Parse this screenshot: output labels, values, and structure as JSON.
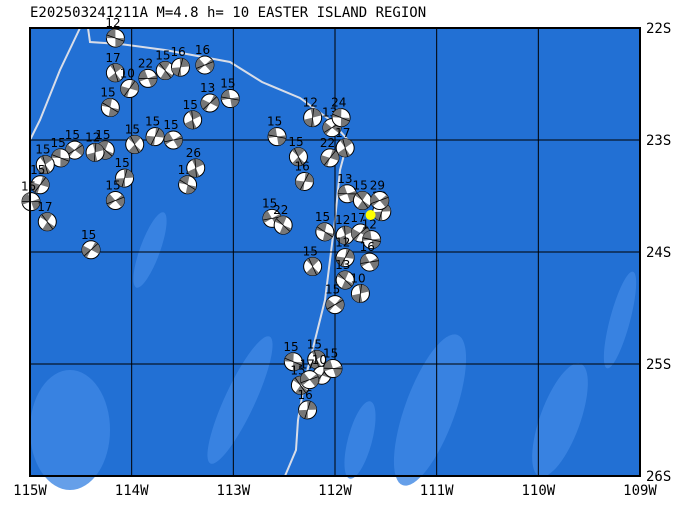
{
  "map": {
    "title": "E202503241211A M=4.8 h= 10 EASTER ISLAND REGION",
    "lon_range": [
      -115,
      -109
    ],
    "lat_range": [
      -22,
      -26
    ],
    "lon_ticks": [
      {
        "value": -115,
        "label": "115W"
      },
      {
        "value": -114,
        "label": "114W"
      },
      {
        "value": -113,
        "label": "113W"
      },
      {
        "value": -112,
        "label": "112W"
      },
      {
        "value": -111,
        "label": "111W"
      },
      {
        "value": -110,
        "label": "110W"
      },
      {
        "value": -109,
        "label": "109W"
      }
    ],
    "lat_ticks": [
      {
        "value": -22,
        "label": "22S"
      },
      {
        "value": -23,
        "label": "23S"
      },
      {
        "value": -24,
        "label": "24S"
      },
      {
        "value": -25,
        "label": "25S"
      },
      {
        "value": -26,
        "label": "26S"
      }
    ],
    "epicenter": {
      "lon": -111.65,
      "lat": -23.67
    },
    "events": [
      {
        "lon": -114.16,
        "lat": -22.09,
        "depth": 12
      },
      {
        "lon": -114.16,
        "lat": -22.4,
        "depth": 17
      },
      {
        "lon": -114.02,
        "lat": -22.54,
        "depth": 10
      },
      {
        "lon": -113.84,
        "lat": -22.45,
        "depth": 22
      },
      {
        "lon": -113.67,
        "lat": -22.38,
        "depth": 15
      },
      {
        "lon": -113.52,
        "lat": -22.35,
        "depth": 16
      },
      {
        "lon": -113.28,
        "lat": -22.33,
        "depth": 16
      },
      {
        "lon": -114.21,
        "lat": -22.71,
        "depth": 15
      },
      {
        "lon": -113.4,
        "lat": -22.82,
        "depth": 15
      },
      {
        "lon": -113.23,
        "lat": -22.67,
        "depth": 13
      },
      {
        "lon": -113.03,
        "lat": -22.63,
        "depth": 15
      },
      {
        "lon": -113.97,
        "lat": -23.04,
        "depth": 15
      },
      {
        "lon": -113.77,
        "lat": -22.97,
        "depth": 15
      },
      {
        "lon": -113.59,
        "lat": -23.0,
        "depth": 15
      },
      {
        "lon": -114.26,
        "lat": -23.09,
        "depth": 15
      },
      {
        "lon": -114.36,
        "lat": -23.11,
        "depth": 12
      },
      {
        "lon": -114.56,
        "lat": -23.09,
        "depth": 15
      },
      {
        "lon": -114.7,
        "lat": -23.16,
        "depth": 15
      },
      {
        "lon": -114.85,
        "lat": -23.22,
        "depth": 15
      },
      {
        "lon": -114.9,
        "lat": -23.4,
        "depth": 15
      },
      {
        "lon": -114.99,
        "lat": -23.55,
        "depth": 15
      },
      {
        "lon": -114.83,
        "lat": -23.73,
        "depth": 17
      },
      {
        "lon": -114.07,
        "lat": -23.34,
        "depth": 15
      },
      {
        "lon": -114.16,
        "lat": -23.54,
        "depth": 15
      },
      {
        "lon": -113.45,
        "lat": -23.4,
        "depth": 15
      },
      {
        "lon": -113.37,
        "lat": -23.25,
        "depth": 26
      },
      {
        "lon": -114.4,
        "lat": -23.98,
        "depth": 15
      },
      {
        "lon": -112.57,
        "lat": -22.97,
        "depth": 15
      },
      {
        "lon": -112.36,
        "lat": -23.15,
        "depth": 15
      },
      {
        "lon": -112.3,
        "lat": -23.37,
        "depth": 16
      },
      {
        "lon": -112.62,
        "lat": -23.7,
        "depth": 15
      },
      {
        "lon": -112.51,
        "lat": -23.76,
        "depth": 22
      },
      {
        "lon": -112.22,
        "lat": -22.8,
        "depth": 12
      },
      {
        "lon": -112.03,
        "lat": -22.89,
        "depth": 13
      },
      {
        "lon": -111.94,
        "lat": -22.8,
        "depth": 24
      },
      {
        "lon": -111.9,
        "lat": -23.07,
        "depth": 17
      },
      {
        "lon": -112.05,
        "lat": -23.16,
        "depth": 22
      },
      {
        "lon": -111.88,
        "lat": -23.48,
        "depth": 13
      },
      {
        "lon": -111.73,
        "lat": -23.54,
        "depth": 15
      },
      {
        "lon": -111.54,
        "lat": -23.64,
        "depth": 13
      },
      {
        "lon": -111.56,
        "lat": -23.54,
        "depth": 29
      },
      {
        "lon": -112.1,
        "lat": -23.82,
        "depth": 15
      },
      {
        "lon": -111.9,
        "lat": -23.85,
        "depth": 12
      },
      {
        "lon": -111.75,
        "lat": -23.83,
        "depth": 17
      },
      {
        "lon": -111.64,
        "lat": -23.89,
        "depth": 12
      },
      {
        "lon": -112.22,
        "lat": -24.13,
        "depth": 15
      },
      {
        "lon": -111.9,
        "lat": -24.05,
        "depth": 12
      },
      {
        "lon": -111.66,
        "lat": -24.09,
        "depth": 16
      },
      {
        "lon": -111.9,
        "lat": -24.25,
        "depth": 13
      },
      {
        "lon": -111.75,
        "lat": -24.37,
        "depth": 10
      },
      {
        "lon": -112.0,
        "lat": -24.47,
        "depth": 15
      },
      {
        "lon": -112.41,
        "lat": -24.98,
        "depth": 15
      },
      {
        "lon": -112.18,
        "lat": -24.96,
        "depth": 15
      },
      {
        "lon": -112.13,
        "lat": -25.1,
        "depth": 10
      },
      {
        "lon": -112.02,
        "lat": -25.04,
        "depth": 15
      },
      {
        "lon": -112.34,
        "lat": -25.19,
        "depth": 15
      },
      {
        "lon": -112.27,
        "lat": -25.41,
        "depth": 16
      },
      {
        "lon": -112.25,
        "lat": -25.14,
        "depth": 17
      }
    ]
  }
}
